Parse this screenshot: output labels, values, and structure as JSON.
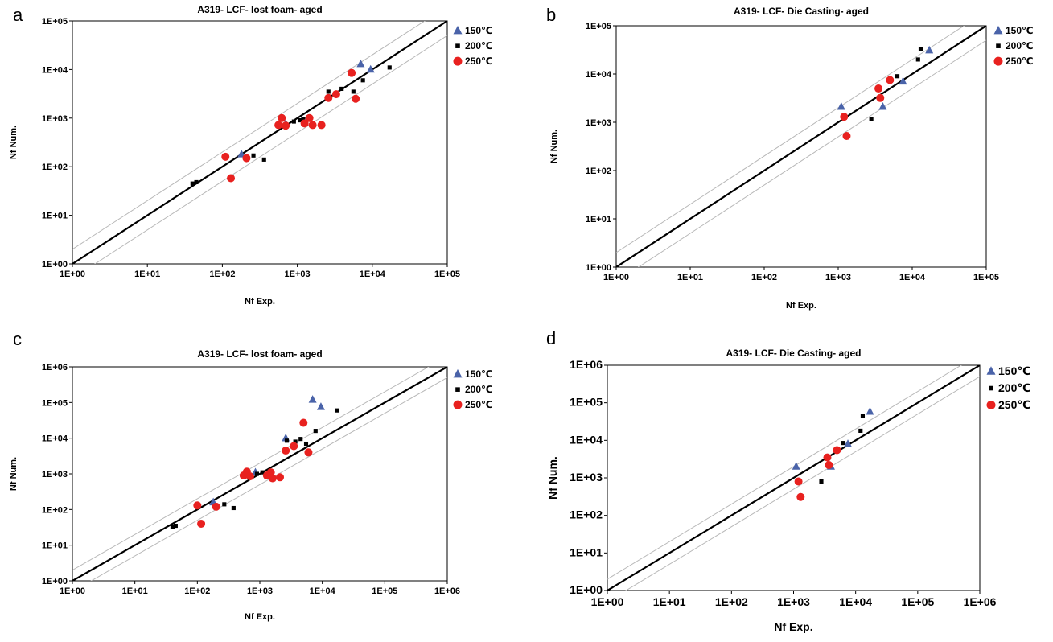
{
  "colors": {
    "s150": "#4a63a9",
    "s200": "#000000",
    "s250": "#e8211f",
    "identity": "#000000",
    "band": "#b8b8b8",
    "frame": "#000000"
  },
  "chart_data": [
    {
      "type": "scatter",
      "panel_label": "a",
      "title": "A319- LCF- lost foam- aged",
      "xlabel": "Nf Exp.",
      "ylabel": "Nf Num.",
      "x_scale": "log",
      "y_scale": "log",
      "xlim": [
        1,
        100000
      ],
      "ylim": [
        1,
        100000
      ],
      "x_ticks": [
        "1E+00",
        "1E+01",
        "1E+02",
        "1E+03",
        "1E+04",
        "1E+05"
      ],
      "y_ticks": [
        "1E+00",
        "1E+01",
        "1E+02",
        "1E+03",
        "1E+04",
        "1E+05"
      ],
      "reference_lines": [
        "y = x",
        "y = 2x",
        "y = x/2"
      ],
      "grid": false,
      "legend_position": "right",
      "series": [
        {
          "name": "150℃",
          "marker": "triangle",
          "points": [
            [
              180,
              180
            ],
            [
              700,
              760
            ],
            [
              7000,
              13000
            ],
            [
              9500,
              10000
            ]
          ]
        },
        {
          "name": "200℃",
          "marker": "square",
          "points": [
            [
              40,
              45
            ],
            [
              45,
              48
            ],
            [
              260,
              170
            ],
            [
              360,
              140
            ],
            [
              900,
              850
            ],
            [
              1100,
              900
            ],
            [
              1200,
              960
            ],
            [
              2600,
              3500
            ],
            [
              3900,
              4000
            ],
            [
              5600,
              3500
            ],
            [
              7500,
              6000
            ],
            [
              17000,
              11000
            ]
          ]
        },
        {
          "name": "250℃",
          "marker": "circle",
          "points": [
            [
              110,
              160
            ],
            [
              130,
              58
            ],
            [
              210,
              150
            ],
            [
              560,
              720
            ],
            [
              620,
              1000
            ],
            [
              700,
              700
            ],
            [
              1250,
              780
            ],
            [
              1450,
              1000
            ],
            [
              1600,
              720
            ],
            [
              2100,
              720
            ],
            [
              2600,
              2600
            ],
            [
              3300,
              3100
            ],
            [
              5300,
              8500
            ],
            [
              6000,
              2500
            ]
          ]
        }
      ]
    },
    {
      "type": "scatter",
      "panel_label": "b",
      "title": "A319- LCF- Die Casting- aged",
      "xlabel": "Nf Exp.",
      "ylabel": "Nf Num.",
      "x_scale": "log",
      "y_scale": "log",
      "xlim": [
        1,
        100000
      ],
      "ylim": [
        1,
        100000
      ],
      "x_ticks": [
        "1E+00",
        "1E+01",
        "1E+02",
        "1E+03",
        "1E+04",
        "1E+05"
      ],
      "y_ticks": [
        "1E+00",
        "1E+01",
        "1E+02",
        "1E+03",
        "1E+04",
        "1E+05"
      ],
      "reference_lines": [
        "y = x",
        "y = 2x",
        "y = x/2"
      ],
      "grid": false,
      "legend_position": "right",
      "series": [
        {
          "name": "150℃",
          "marker": "triangle",
          "points": [
            [
              1100,
              2100
            ],
            [
              4000,
              2100
            ],
            [
              7500,
              7000
            ],
            [
              17000,
              31000
            ]
          ]
        },
        {
          "name": "200℃",
          "marker": "square",
          "points": [
            [
              2800,
              1150
            ],
            [
              6300,
              9000
            ],
            [
              12000,
              20000
            ],
            [
              13000,
              33000
            ]
          ]
        },
        {
          "name": "250℃",
          "marker": "circle",
          "points": [
            [
              1200,
              1300
            ],
            [
              1300,
              520
            ],
            [
              3500,
              5000
            ],
            [
              3700,
              3200
            ],
            [
              5000,
              7500
            ]
          ]
        }
      ]
    },
    {
      "type": "scatter",
      "panel_label": "c",
      "title": "A319- LCF- lost foam- aged",
      "xlabel": "Nf Exp.",
      "ylabel": "Nf Num.",
      "x_scale": "log",
      "y_scale": "log",
      "xlim": [
        1,
        1000000
      ],
      "ylim": [
        1,
        1000000
      ],
      "x_ticks": [
        "1E+00",
        "1E+01",
        "1E+02",
        "1E+03",
        "1E+04",
        "1E+05",
        "1E+06"
      ],
      "y_ticks": [
        "1E+00",
        "1E+01",
        "1E+02",
        "1E+03",
        "1E+04",
        "1E+05",
        "1E+06"
      ],
      "reference_lines": [
        "y = x",
        "y = 2x",
        "y = x/2"
      ],
      "grid": false,
      "legend_position": "right",
      "series": [
        {
          "name": "150℃",
          "marker": "triangle",
          "points": [
            [
              180,
              160
            ],
            [
              850,
              1100
            ],
            [
              2600,
              10000
            ],
            [
              7000,
              120000
            ],
            [
              9500,
              75000
            ]
          ]
        },
        {
          "name": "200℃",
          "marker": "square",
          "points": [
            [
              40,
              33
            ],
            [
              45,
              35
            ],
            [
              270,
              140
            ],
            [
              380,
              110
            ],
            [
              900,
              1000
            ],
            [
              1100,
              1100
            ],
            [
              2700,
              8500
            ],
            [
              3700,
              8000
            ],
            [
              4500,
              9500
            ],
            [
              5500,
              7000
            ],
            [
              7800,
              16000
            ],
            [
              17000,
              60000
            ]
          ]
        },
        {
          "name": "250℃",
          "marker": "circle",
          "points": [
            [
              100,
              130
            ],
            [
              115,
              40
            ],
            [
              200,
              120
            ],
            [
              550,
              900
            ],
            [
              620,
              1150
            ],
            [
              700,
              850
            ],
            [
              1300,
              900
            ],
            [
              1500,
              1100
            ],
            [
              1600,
              750
            ],
            [
              2100,
              800
            ],
            [
              2600,
              4500
            ],
            [
              3500,
              6000
            ],
            [
              5000,
              27000
            ],
            [
              6000,
              4000
            ]
          ]
        }
      ]
    },
    {
      "type": "scatter",
      "panel_label": "d",
      "title": "A319- LCF- Die Casting- aged",
      "xlabel": "Nf Exp.",
      "ylabel": "Nf Num.",
      "x_scale": "log",
      "y_scale": "log",
      "xlim": [
        1,
        1000000
      ],
      "ylim": [
        1,
        1000000
      ],
      "x_ticks": [
        "1E+00",
        "1E+01",
        "1E+02",
        "1E+03",
        "1E+04",
        "1E+05",
        "1E+06"
      ],
      "y_ticks": [
        "1E+00",
        "1E+01",
        "1E+02",
        "1E+03",
        "1E+04",
        "1E+05",
        "1E+06"
      ],
      "reference_lines": [
        "y = x",
        "y = 2x",
        "y = x/2"
      ],
      "grid": false,
      "legend_position": "right",
      "series": [
        {
          "name": "150℃",
          "marker": "triangle",
          "points": [
            [
              1100,
              2000
            ],
            [
              4000,
              2000
            ],
            [
              7500,
              8000
            ],
            [
              17000,
              58000
            ]
          ]
        },
        {
          "name": "200℃",
          "marker": "square",
          "points": [
            [
              2800,
              800
            ],
            [
              6300,
              8500
            ],
            [
              12000,
              18000
            ],
            [
              13000,
              45000
            ]
          ]
        },
        {
          "name": "250℃",
          "marker": "circle",
          "points": [
            [
              1200,
              800
            ],
            [
              1300,
              310
            ],
            [
              3500,
              3500
            ],
            [
              3700,
              2200
            ],
            [
              5000,
              5500
            ]
          ]
        }
      ]
    }
  ]
}
